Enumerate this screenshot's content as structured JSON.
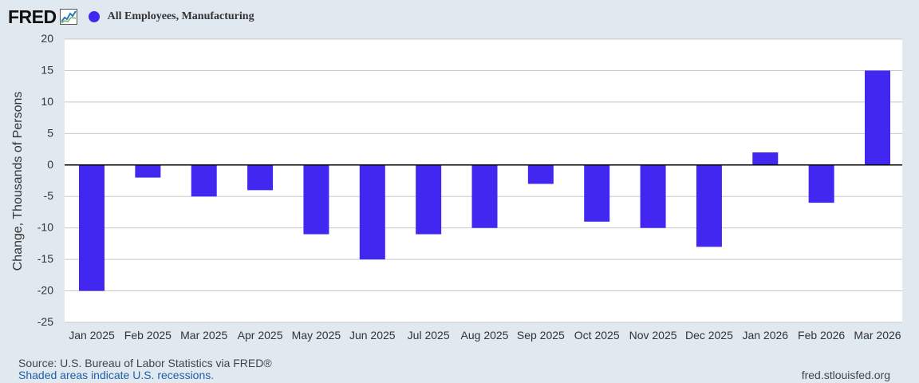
{
  "header": {
    "logo_text": "FRED",
    "series_label": "All Employees, Manufacturing"
  },
  "colors": {
    "background": "#e1e9f0",
    "plot_background": "#ffffff",
    "bar": "#4127f0",
    "grid": "#c8c8c8",
    "zero_line": "#000000"
  },
  "chart_data": {
    "type": "bar",
    "title": "All Employees, Manufacturing",
    "ylabel": "Change, Thousands of Persons",
    "xlabel": "",
    "ylim": [
      -25,
      20
    ],
    "yticks": [
      20,
      15,
      10,
      5,
      0,
      -5,
      -10,
      -15,
      -20,
      -25
    ],
    "grid": true,
    "categories": [
      "Jan 2025",
      "Feb 2025",
      "Mar 2025",
      "Apr 2025",
      "May 2025",
      "Jun 2025",
      "Jul 2025",
      "Aug 2025",
      "Sep 2025",
      "Oct 2025",
      "Nov 2025",
      "Dec 2025",
      "Jan 2026",
      "Feb 2026",
      "Mar 2026"
    ],
    "series": [
      {
        "values": [
          -20,
          -2,
          -5,
          -4,
          -11,
          -15,
          -11,
          -10,
          -3,
          -9,
          -10,
          -13,
          2,
          -6,
          15
        ]
      }
    ]
  },
  "footer": {
    "source": "Source: U.S. Bureau of Labor Statistics via FRED®",
    "recession_note": "Shaded areas indicate U.S. recessions.",
    "site": "fred.stlouisfed.org"
  }
}
